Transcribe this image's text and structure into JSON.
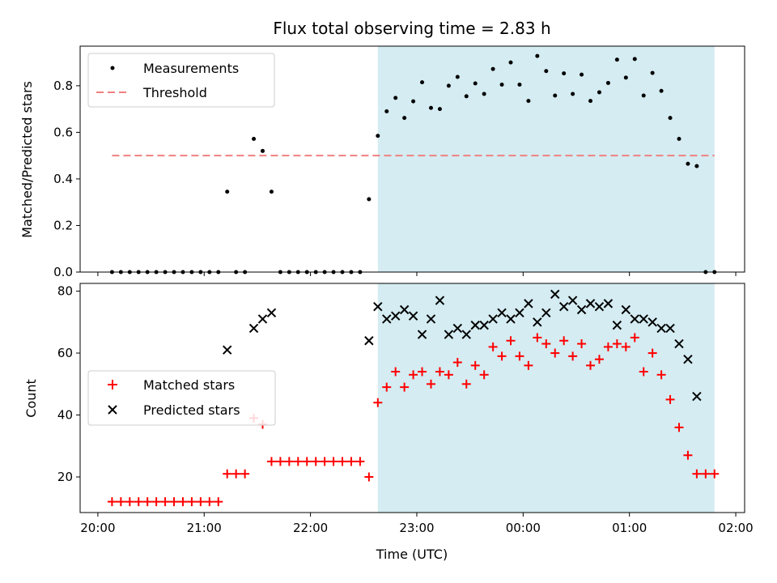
{
  "chart_data": {
    "type": "scatter",
    "title": "Flux total observing time = 2.83 h",
    "xlabel": "Time (UTC)",
    "x_axis": {
      "ticks": [
        "20:00",
        "21:00",
        "22:00",
        "23:00",
        "00:00",
        "01:00",
        "02:00"
      ],
      "range": [
        "19:50",
        "02:05"
      ]
    },
    "observing_window": {
      "start": "22:38",
      "end": "01:48",
      "color": "#d4ecf2"
    },
    "panels": [
      {
        "ylabel": "Matched/Predicted stars",
        "ylim": [
          0,
          0.97
        ],
        "yticks": [
          "0.0",
          "0.2",
          "0.4",
          "0.6",
          "0.8"
        ],
        "threshold": {
          "value": 0.5,
          "from": "20:08",
          "to": "01:48"
        },
        "legend": {
          "placement": "top-left",
          "entries": [
            {
              "label": "Measurements",
              "marker": "dot",
              "color": "#000000"
            },
            {
              "label": "Threshold",
              "marker": "dashed-line",
              "color": "#f08080"
            }
          ]
        },
        "series": [
          {
            "name": "Measurements",
            "color": "#000000",
            "points": [
              [
                "20:08",
                0
              ],
              [
                "20:13",
                0
              ],
              [
                "20:18",
                0
              ],
              [
                "20:23",
                0
              ],
              [
                "20:28",
                0
              ],
              [
                "20:33",
                0
              ],
              [
                "20:38",
                0
              ],
              [
                "20:43",
                0
              ],
              [
                "20:48",
                0
              ],
              [
                "20:53",
                0
              ],
              [
                "20:58",
                0
              ],
              [
                "21:03",
                0
              ],
              [
                "21:08",
                0
              ],
              [
                "21:13",
                0.345
              ],
              [
                "21:18",
                0
              ],
              [
                "21:23",
                0
              ],
              [
                "21:28",
                0.572
              ],
              [
                "21:33",
                0.52
              ],
              [
                "21:38",
                0.345
              ],
              [
                "21:43",
                0
              ],
              [
                "21:48",
                0
              ],
              [
                "21:53",
                0
              ],
              [
                "21:58",
                0
              ],
              [
                "22:03",
                0
              ],
              [
                "22:08",
                0
              ],
              [
                "22:13",
                0
              ],
              [
                "22:18",
                0
              ],
              [
                "22:23",
                0
              ],
              [
                "22:28",
                0
              ],
              [
                "22:33",
                0.313
              ],
              [
                "22:38",
                0.585
              ],
              [
                "22:43",
                0.69
              ],
              [
                "22:48",
                0.748
              ],
              [
                "22:53",
                0.662
              ],
              [
                "22:58",
                0.733
              ],
              [
                "23:03",
                0.815
              ],
              [
                "23:08",
                0.705
              ],
              [
                "23:13",
                0.7
              ],
              [
                "23:18",
                0.8
              ],
              [
                "23:23",
                0.838
              ],
              [
                "23:28",
                0.755
              ],
              [
                "23:33",
                0.81
              ],
              [
                "23:38",
                0.765
              ],
              [
                "23:43",
                0.872
              ],
              [
                "23:48",
                0.805
              ],
              [
                "23:53",
                0.9
              ],
              [
                "23:58",
                0.805
              ],
              [
                "00:03",
                0.735
              ],
              [
                "00:08",
                0.928
              ],
              [
                "00:13",
                0.863
              ],
              [
                "00:18",
                0.758
              ],
              [
                "00:23",
                0.853
              ],
              [
                "00:28",
                0.765
              ],
              [
                "00:33",
                0.848
              ],
              [
                "00:38",
                0.735
              ],
              [
                "00:43",
                0.772
              ],
              [
                "00:48",
                0.812
              ],
              [
                "00:53",
                0.912
              ],
              [
                "00:58",
                0.835
              ],
              [
                "01:03",
                0.915
              ],
              [
                "01:08",
                0.758
              ],
              [
                "01:13",
                0.855
              ],
              [
                "01:18",
                0.778
              ],
              [
                "01:23",
                0.662
              ],
              [
                "01:28",
                0.572
              ],
              [
                "01:33",
                0.465
              ],
              [
                "01:38",
                0.455
              ],
              [
                "01:43",
                0
              ],
              [
                "01:48",
                0
              ]
            ]
          }
        ]
      },
      {
        "ylabel": "Count",
        "ylim": [
          8.5,
          82.5
        ],
        "yticks": [
          "20",
          "40",
          "60",
          "80"
        ],
        "legend": {
          "placement": "center-left",
          "entries": [
            {
              "label": "Matched stars",
              "marker": "plus",
              "color": "#ff0000"
            },
            {
              "label": "Predicted stars",
              "marker": "x",
              "color": "#000000"
            }
          ]
        },
        "series": [
          {
            "name": "Matched stars",
            "color": "#ff0000",
            "marker": "plus",
            "points": [
              [
                "20:08",
                12
              ],
              [
                "20:13",
                12
              ],
              [
                "20:18",
                12
              ],
              [
                "20:23",
                12
              ],
              [
                "20:28",
                12
              ],
              [
                "20:33",
                12
              ],
              [
                "20:38",
                12
              ],
              [
                "20:43",
                12
              ],
              [
                "20:48",
                12
              ],
              [
                "20:53",
                12
              ],
              [
                "20:58",
                12
              ],
              [
                "21:03",
                12
              ],
              [
                "21:08",
                12
              ],
              [
                "21:13",
                21
              ],
              [
                "21:18",
                21
              ],
              [
                "21:23",
                21
              ],
              [
                "21:28",
                39
              ],
              [
                "21:33",
                37
              ],
              [
                "21:38",
                25
              ],
              [
                "21:43",
                25
              ],
              [
                "21:48",
                25
              ],
              [
                "21:53",
                25
              ],
              [
                "21:58",
                25
              ],
              [
                "22:03",
                25
              ],
              [
                "22:08",
                25
              ],
              [
                "22:13",
                25
              ],
              [
                "22:18",
                25
              ],
              [
                "22:23",
                25
              ],
              [
                "22:28",
                25
              ],
              [
                "22:33",
                20
              ],
              [
                "22:38",
                44
              ],
              [
                "22:43",
                49
              ],
              [
                "22:48",
                54
              ],
              [
                "22:53",
                49
              ],
              [
                "22:58",
                53
              ],
              [
                "23:03",
                54
              ],
              [
                "23:08",
                50
              ],
              [
                "23:13",
                54
              ],
              [
                "23:18",
                53
              ],
              [
                "23:23",
                57
              ],
              [
                "23:28",
                50
              ],
              [
                "23:33",
                56
              ],
              [
                "23:38",
                53
              ],
              [
                "23:43",
                62
              ],
              [
                "23:48",
                59
              ],
              [
                "23:53",
                64
              ],
              [
                "23:58",
                59
              ],
              [
                "00:03",
                56
              ],
              [
                "00:08",
                65
              ],
              [
                "00:13",
                63
              ],
              [
                "00:18",
                60
              ],
              [
                "00:23",
                64
              ],
              [
                "00:28",
                59
              ],
              [
                "00:33",
                63
              ],
              [
                "00:38",
                56
              ],
              [
                "00:43",
                58
              ],
              [
                "00:48",
                62
              ],
              [
                "00:53",
                63
              ],
              [
                "00:58",
                62
              ],
              [
                "01:03",
                65
              ],
              [
                "01:08",
                54
              ],
              [
                "01:13",
                60
              ],
              [
                "01:18",
                53
              ],
              [
                "01:23",
                45
              ],
              [
                "01:28",
                36
              ],
              [
                "01:33",
                27
              ],
              [
                "01:38",
                21
              ],
              [
                "01:43",
                21
              ],
              [
                "01:48",
                21
              ]
            ]
          },
          {
            "name": "Predicted stars",
            "color": "#000000",
            "marker": "x",
            "points": [
              [
                "21:13",
                61
              ],
              [
                "21:28",
                68
              ],
              [
                "21:33",
                71
              ],
              [
                "21:38",
                73
              ],
              [
                "22:33",
                64
              ],
              [
                "22:38",
                75
              ],
              [
                "22:43",
                71
              ],
              [
                "22:48",
                72
              ],
              [
                "22:53",
                74
              ],
              [
                "22:58",
                72
              ],
              [
                "23:03",
                66
              ],
              [
                "23:08",
                71
              ],
              [
                "23:13",
                77
              ],
              [
                "23:18",
                66
              ],
              [
                "23:23",
                68
              ],
              [
                "23:28",
                66
              ],
              [
                "23:33",
                69
              ],
              [
                "23:38",
                69
              ],
              [
                "23:43",
                71
              ],
              [
                "23:48",
                73
              ],
              [
                "23:53",
                71
              ],
              [
                "23:58",
                73
              ],
              [
                "00:03",
                76
              ],
              [
                "00:08",
                70
              ],
              [
                "00:13",
                73
              ],
              [
                "00:18",
                79
              ],
              [
                "00:23",
                75
              ],
              [
                "00:28",
                77
              ],
              [
                "00:33",
                74
              ],
              [
                "00:38",
                76
              ],
              [
                "00:43",
                75
              ],
              [
                "00:48",
                76
              ],
              [
                "00:53",
                69
              ],
              [
                "00:58",
                74
              ],
              [
                "01:03",
                71
              ],
              [
                "01:08",
                71
              ],
              [
                "01:13",
                70
              ],
              [
                "01:18",
                68
              ],
              [
                "01:23",
                68
              ],
              [
                "01:28",
                63
              ],
              [
                "01:33",
                58
              ],
              [
                "01:38",
                46
              ]
            ]
          }
        ]
      }
    ]
  }
}
